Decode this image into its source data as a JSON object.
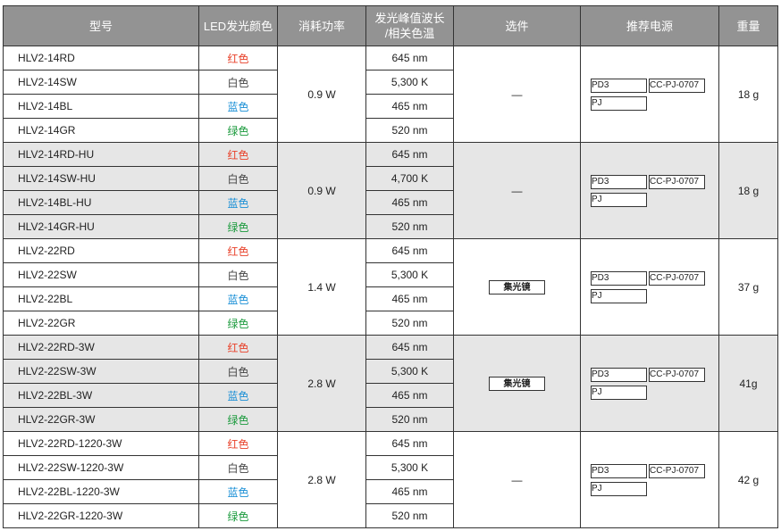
{
  "headers": {
    "model": "型号",
    "color": "LED发光颜色",
    "power": "消耗功率",
    "wavelength": "发光峰值波长\n/相关色温",
    "option": "选件",
    "supply": "推荐电源",
    "weight": "重量"
  },
  "colors": {
    "red": "#e8412a",
    "blue": "#1a8fd6",
    "green": "#1a9a3c",
    "header_bg": "#939393",
    "alt_bg": "#e6e6e6"
  },
  "groups": [
    {
      "power": "0.9 W",
      "option": "—",
      "weight": "18 g",
      "supplies": [
        "PD3",
        "CC-PJ-0707",
        "PJ"
      ],
      "rows": [
        {
          "model": "HLV2-14RD",
          "color": "红色",
          "wl": "645 nm"
        },
        {
          "model": "HLV2-14SW",
          "color": "白色",
          "wl": "5,300 K"
        },
        {
          "model": "HLV2-14BL",
          "color": "蓝色",
          "wl": "465 nm"
        },
        {
          "model": "HLV2-14GR",
          "color": "绿色",
          "wl": "520 nm"
        }
      ]
    },
    {
      "power": "0.9 W",
      "option": "—",
      "weight": "18 g",
      "supplies": [
        "PD3",
        "CC-PJ-0707",
        "PJ"
      ],
      "rows": [
        {
          "model": "HLV2-14RD-HU",
          "color": "红色",
          "wl": "645 nm"
        },
        {
          "model": "HLV2-14SW-HU",
          "color": "白色",
          "wl": "4,700 K"
        },
        {
          "model": "HLV2-14BL-HU",
          "color": "蓝色",
          "wl": "465 nm"
        },
        {
          "model": "HLV2-14GR-HU",
          "color": "绿色",
          "wl": "520 nm"
        }
      ]
    },
    {
      "power": "1.4 W",
      "option": "集光镜",
      "weight": "37 g",
      "supplies": [
        "PD3",
        "CC-PJ-0707",
        "PJ"
      ],
      "rows": [
        {
          "model": "HLV2-22RD",
          "color": "红色",
          "wl": "645 nm"
        },
        {
          "model": "HLV2-22SW",
          "color": "白色",
          "wl": "5,300 K"
        },
        {
          "model": "HLV2-22BL",
          "color": "蓝色",
          "wl": "465 nm"
        },
        {
          "model": "HLV2-22GR",
          "color": "绿色",
          "wl": "520 nm"
        }
      ]
    },
    {
      "power": "2.8 W",
      "option": "集光镜",
      "weight": "41g",
      "supplies": [
        "PD3",
        "CC-PJ-0707",
        "PJ"
      ],
      "rows": [
        {
          "model": "HLV2-22RD-3W",
          "color": "红色",
          "wl": "645 nm"
        },
        {
          "model": "HLV2-22SW-3W",
          "color": "白色",
          "wl": "5,300 K"
        },
        {
          "model": "HLV2-22BL-3W",
          "color": "蓝色",
          "wl": "465 nm"
        },
        {
          "model": "HLV2-22GR-3W",
          "color": "绿色",
          "wl": "520 nm"
        }
      ]
    },
    {
      "power": "2.8 W",
      "option": "—",
      "weight": "42 g",
      "supplies": [
        "PD3",
        "CC-PJ-0707",
        "PJ"
      ],
      "rows": [
        {
          "model": "HLV2-22RD-1220-3W",
          "color": "红色",
          "wl": "645 nm"
        },
        {
          "model": "HLV2-22SW-1220-3W",
          "color": "白色",
          "wl": "5,300 K"
        },
        {
          "model": "HLV2-22BL-1220-3W",
          "color": "蓝色",
          "wl": "465 nm"
        },
        {
          "model": "HLV2-22GR-1220-3W",
          "color": "绿色",
          "wl": "520 nm"
        }
      ]
    }
  ]
}
